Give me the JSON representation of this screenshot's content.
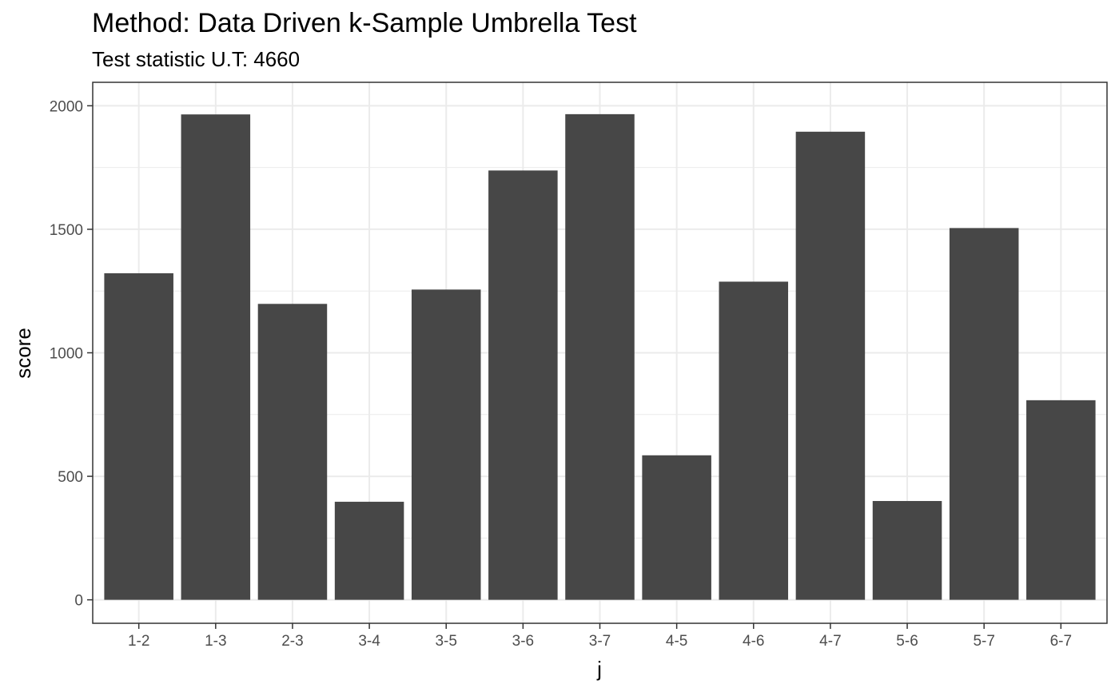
{
  "chart_data": {
    "type": "bar",
    "title": "Method: Data Driven k-Sample Umbrella Test",
    "subtitle": "Test statistic U.T: 4660",
    "xlabel": "j",
    "ylabel": "score",
    "categories": [
      "1-2",
      "1-3",
      "2-3",
      "3-4",
      "3-5",
      "3-6",
      "3-7",
      "4-5",
      "4-6",
      "4-7",
      "5-6",
      "5-7",
      "6-7"
    ],
    "values": [
      1322,
      1965,
      1198,
      397,
      1256,
      1738,
      1966,
      585,
      1288,
      1895,
      400,
      1505,
      808
    ],
    "ylim": [
      -95,
      2095
    ],
    "yticks": [
      0,
      500,
      1000,
      1500,
      2000
    ],
    "grid": true,
    "bar_color": "#474747",
    "grid_color": "#ebebeb",
    "border_color": "#333333"
  }
}
